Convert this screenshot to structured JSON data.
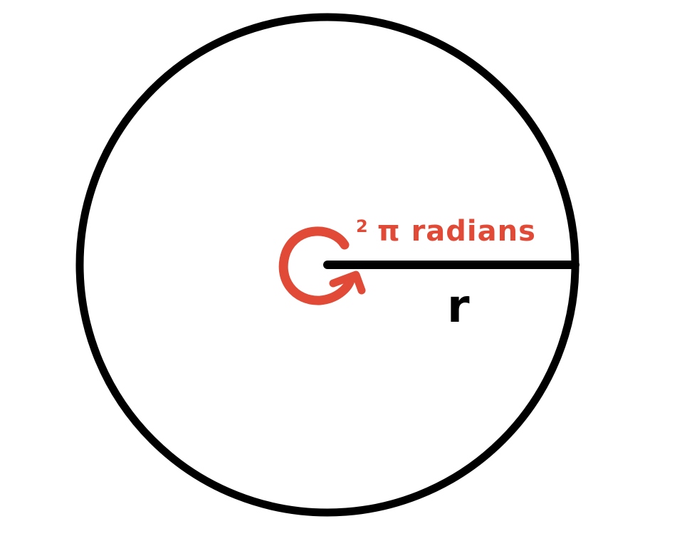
{
  "diagram": {
    "colors": {
      "stroke": "#000000",
      "accent": "#e04a36",
      "background": "#ffffff"
    },
    "labels": {
      "angle_coefficient": "2",
      "angle_rest": "π radians",
      "radius": "r"
    }
  }
}
